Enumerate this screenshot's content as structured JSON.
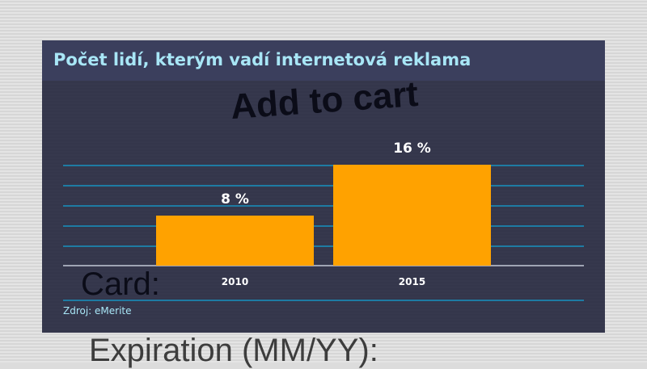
{
  "background_texts": [
    "Add to cart",
    "Card:",
    "Expiration (MM/YY):"
  ],
  "chart_data": {
    "type": "bar",
    "title": "Počet lidí, kterým vadí internetová reklama",
    "categories": [
      "2010",
      "2015"
    ],
    "values": [
      8,
      16
    ],
    "data_labels": [
      "8 %",
      "16 %"
    ],
    "xlabel": "",
    "ylabel": "",
    "ylim": [
      0,
      16
    ],
    "grid": true,
    "source": "Zdroj: eMerite",
    "colors": {
      "bar": "#ffa200",
      "title": "#a8e6f6",
      "grid": "#1e7ba3",
      "panel": "#22253c"
    }
  }
}
